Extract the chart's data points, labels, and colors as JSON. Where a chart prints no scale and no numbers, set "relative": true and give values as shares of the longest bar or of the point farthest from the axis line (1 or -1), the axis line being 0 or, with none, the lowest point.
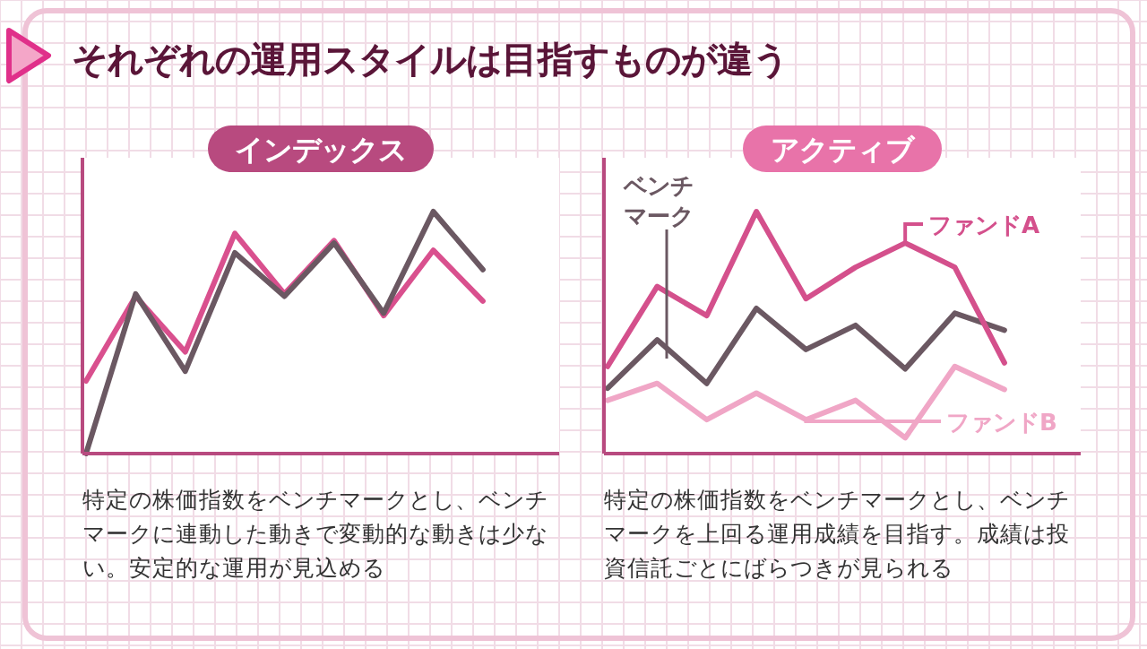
{
  "chart_data": [
    {
      "type": "line",
      "title": "それぞれの運用スタイルは目指すものが違う",
      "subtitle": "インデックス",
      "relative": true,
      "categories": [
        null,
        null,
        null,
        null,
        null,
        null,
        null,
        null,
        null
      ],
      "series": [
        {
          "color": "#6b5862",
          "values": [
            0,
            0.66,
            0.34,
            0.83,
            0.65,
            0.87,
            0.58,
            1,
            0.76
          ]
        },
        {
          "color": "#d9508e",
          "values": [
            0.3,
            0.65,
            0.42,
            0.91,
            0.66,
            0.88,
            0.57,
            0.84,
            0.63
          ]
        }
      ],
      "annotations": [
        "特定の株価指数をベンチマークとし、ベンチマークに連動した動きで変動的な動きは少ない。安定的な運用が見込める"
      ]
    },
    {
      "type": "line",
      "subtitle": "アクティブ",
      "relative": true,
      "categories": [
        null,
        null,
        null,
        null,
        null,
        null,
        null,
        null,
        null
      ],
      "series": [
        {
          "name": "ファンドA",
          "color": "#d4508c",
          "values": [
            0.36,
            0.69,
            0.57,
            1,
            0.64,
            0.77,
            0.87,
            0.77,
            0.375
          ]
        },
        {
          "name": "ベンチマーク",
          "color": "#6b5862",
          "values": [
            0.27,
            0.47,
            0.29,
            0.6,
            0.43,
            0.53,
            0.35,
            0.58,
            0.51
          ]
        },
        {
          "name": "ファンドB",
          "color": "#f0a6c6",
          "values": [
            0.22,
            0.29,
            0.14,
            0.25,
            0.14,
            0.22,
            0.065,
            0.36,
            0.265
          ]
        }
      ],
      "annotations": [
        "特定の株価指数をベンチマークとし、ベンチマークを上回る運用成績を目指す。成績は投資信託ごとにばらつきが見られる"
      ]
    }
  ]
}
